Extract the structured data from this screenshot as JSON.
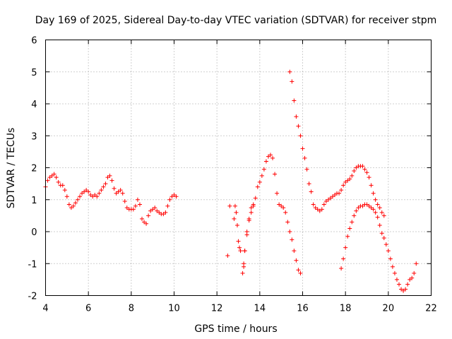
{
  "chart_data": {
    "type": "scatter",
    "title": "Day 169 of 2025, Sidereal Day-to-day VTEC variation (SDTVAR) for receiver stpm",
    "xlabel": "GPS time / hours",
    "ylabel": "SDTVAR / TECUs",
    "xlim": [
      4,
      22
    ],
    "ylim": [
      -2,
      6
    ],
    "xticks": [
      "4",
      "6",
      "8",
      "10",
      "12",
      "14",
      "16",
      "18",
      "20",
      "22"
    ],
    "yticks": [
      "-2",
      "-1",
      "0",
      "1",
      "2",
      "3",
      "4",
      "5",
      "6"
    ],
    "grid": true,
    "legend": "none",
    "marker": "plus",
    "color": "#ff0000",
    "series": [
      {
        "x": [
          4.0,
          4.1,
          4.2,
          4.3,
          4.4,
          4.5,
          4.6,
          4.7,
          4.8,
          4.9,
          5.0,
          5.1,
          5.2,
          5.3,
          5.4,
          5.5,
          5.6,
          5.7,
          5.8,
          5.9,
          6.0,
          6.1,
          6.2,
          6.3,
          6.4,
          6.5,
          6.6,
          6.7,
          6.8,
          6.9,
          7.0,
          7.1,
          7.2,
          7.3,
          7.4,
          7.5,
          7.6,
          7.7,
          7.8,
          7.9,
          8.0,
          8.1,
          8.2,
          8.3,
          8.4,
          8.5,
          8.6,
          8.7,
          8.8,
          8.9,
          9.0,
          9.1,
          9.2,
          9.3,
          9.4,
          9.5,
          9.6,
          9.7,
          9.8,
          9.9,
          10.0,
          10.1
        ],
        "y": [
          1.4,
          1.6,
          1.7,
          1.75,
          1.8,
          1.7,
          1.55,
          1.45,
          1.45,
          1.3,
          1.1,
          0.85,
          0.75,
          0.8,
          0.9,
          1.0,
          1.1,
          1.2,
          1.25,
          1.3,
          1.25,
          1.15,
          1.1,
          1.15,
          1.1,
          1.2,
          1.3,
          1.4,
          1.5,
          1.7,
          1.75,
          1.6,
          1.35,
          1.2,
          1.25,
          1.3,
          1.2,
          0.95,
          0.75,
          0.7,
          0.7,
          0.7,
          0.8,
          1.0,
          0.85,
          0.4,
          0.3,
          0.25,
          0.5,
          0.65,
          0.7,
          0.75,
          0.65,
          0.6,
          0.55,
          0.55,
          0.6,
          0.8,
          1.0,
          1.1,
          1.15,
          1.1
        ]
      },
      {
        "x": [
          12.5,
          12.6,
          12.8,
          12.85,
          12.9,
          12.95,
          13.0,
          13.05,
          13.1
        ],
        "y": [
          -0.75,
          0.8,
          0.4,
          0.8,
          0.6,
          0.2,
          -0.3,
          -0.5,
          -0.6
        ]
      },
      {
        "x": [
          13.2,
          13.25,
          13.3,
          13.4,
          13.5,
          13.6,
          13.7,
          13.8,
          13.9,
          14.0,
          14.1,
          14.2,
          14.3,
          14.4,
          14.5,
          14.6,
          14.7,
          14.8,
          14.9,
          15.0,
          15.1,
          15.2,
          15.3,
          15.4,
          15.5,
          15.6,
          15.7,
          15.8,
          15.9
        ],
        "y": [
          -1.3,
          -1.0,
          -0.6,
          0.0,
          0.4,
          0.75,
          0.85,
          1.05,
          1.4,
          1.55,
          1.75,
          1.95,
          2.2,
          2.35,
          2.4,
          2.3,
          1.8,
          1.2,
          0.85,
          0.8,
          0.75,
          0.6,
          0.3,
          0.0,
          -0.25,
          -0.6,
          -0.9,
          -1.2,
          -1.3
        ]
      },
      {
        "x": [
          13.25,
          13.3,
          13.4,
          13.5,
          13.6,
          13.7
        ],
        "y": [
          -1.1,
          -0.6,
          -0.1,
          0.35,
          0.6,
          0.8
        ]
      },
      {
        "x": [
          15.4,
          15.5,
          15.6,
          15.7,
          15.8,
          15.9,
          16.0,
          16.1,
          16.2,
          16.3,
          16.4,
          16.5,
          16.6,
          16.7,
          16.8,
          16.9,
          17.0,
          17.1,
          17.2,
          17.3,
          17.4,
          17.5,
          17.6,
          17.7,
          17.8,
          17.9,
          18.0,
          18.1,
          18.2,
          18.3,
          18.4,
          18.5,
          18.6,
          18.7,
          18.8,
          18.9,
          19.0,
          19.1,
          19.2,
          19.3,
          19.4,
          19.5,
          19.6,
          19.7,
          19.8
        ],
        "y": [
          5.0,
          4.7,
          4.1,
          3.6,
          3.3,
          3.0,
          2.6,
          2.3,
          1.95,
          1.5,
          1.25,
          0.85,
          0.75,
          0.7,
          0.65,
          0.7,
          0.85,
          0.95,
          1.0,
          1.05,
          1.1,
          1.15,
          1.2,
          1.2,
          1.3,
          1.45,
          1.55,
          1.6,
          1.65,
          1.75,
          1.9,
          2.0,
          2.05,
          2.05,
          2.05,
          1.95,
          1.85,
          1.7,
          1.45,
          1.2,
          1.0,
          0.85,
          0.75,
          0.6,
          0.5
        ]
      },
      {
        "x": [
          17.8,
          17.9,
          18.0,
          18.1,
          18.2,
          18.3,
          18.4,
          18.5,
          18.6,
          18.7,
          18.8,
          18.9,
          19.0,
          19.1,
          19.2,
          19.3,
          19.4,
          19.5,
          19.6,
          19.7,
          19.8,
          19.9,
          20.0,
          20.1,
          20.2,
          20.3,
          20.4,
          20.5,
          20.6,
          20.7,
          20.8,
          20.9,
          21.0,
          21.1,
          21.2,
          21.3
        ],
        "y": [
          -1.15,
          -0.85,
          -0.5,
          -0.15,
          0.1,
          0.3,
          0.5,
          0.65,
          0.75,
          0.8,
          0.8,
          0.85,
          0.85,
          0.8,
          0.75,
          0.7,
          0.6,
          0.45,
          0.2,
          -0.05,
          -0.2,
          -0.4,
          -0.6,
          -0.85,
          -1.1,
          -1.3,
          -1.5,
          -1.65,
          -1.8,
          -1.85,
          -1.8,
          -1.65,
          -1.5,
          -1.45,
          -1.3,
          -1.0
        ]
      }
    ]
  }
}
